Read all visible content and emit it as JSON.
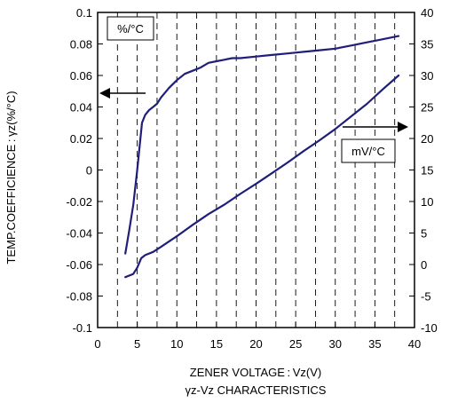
{
  "chart_data": {
    "type": "line",
    "title": "",
    "caption": "γz-Vz CHARACTERISTICS",
    "xlabel": "ZENER VOLTAGE : Vz(V)",
    "ylabel_left": "TEMP.COEFFICIENCE : γz(%/°C)",
    "xlim": [
      0,
      40
    ],
    "ylim_left": [
      -0.1,
      0.1
    ],
    "ylim_right": [
      -10,
      40
    ],
    "x_ticks": [
      "0",
      "5",
      "10",
      "15",
      "20",
      "25",
      "30",
      "35",
      "40"
    ],
    "y_left_ticks": [
      "-0.1",
      "-0.08",
      "-0.06",
      "-0.04",
      "-0.02",
      "0",
      "0.02",
      "0.04",
      "0.06",
      "0.08",
      "0.1"
    ],
    "y_right_ticks": [
      "-10",
      "-5",
      "0",
      "5",
      "10",
      "15",
      "20",
      "25",
      "30",
      "35",
      "40"
    ],
    "grid": "vertical dashed",
    "series": [
      {
        "unit_label": "%/°C",
        "axis": "left",
        "color": "#1f1f7a",
        "x": [
          3.5,
          4.0,
          4.5,
          5.0,
          5.3,
          5.6,
          6.0,
          6.5,
          7.0,
          7.5,
          8,
          9,
          10,
          11,
          12,
          13,
          14,
          15,
          16,
          17,
          18,
          20,
          22,
          24,
          26,
          28,
          30,
          32,
          34,
          36,
          38
        ],
        "values": [
          -0.053,
          -0.038,
          -0.022,
          0.0,
          0.015,
          0.03,
          0.035,
          0.038,
          0.04,
          0.042,
          0.046,
          0.052,
          0.057,
          0.061,
          0.063,
          0.065,
          0.068,
          0.069,
          0.07,
          0.071,
          0.071,
          0.072,
          0.073,
          0.074,
          0.075,
          0.076,
          0.077,
          0.079,
          0.081,
          0.083,
          0.085
        ]
      },
      {
        "unit_label": "mV/°C",
        "axis": "right",
        "color": "#1f1f7a",
        "x": [
          3.5,
          4.5,
          5.0,
          5.5,
          6.0,
          7.0,
          8.0,
          10,
          12,
          14,
          16,
          18,
          20,
          22,
          24,
          26,
          28,
          30,
          32,
          34,
          36,
          38
        ],
        "values": [
          -2.0,
          -1.5,
          -0.5,
          1.0,
          1.5,
          2.0,
          2.8,
          4.5,
          6.3,
          8.0,
          9.5,
          11.2,
          12.8,
          14.5,
          16.2,
          18.0,
          19.7,
          21.5,
          23.5,
          25.5,
          27.8,
          30.0
        ]
      }
    ]
  }
}
